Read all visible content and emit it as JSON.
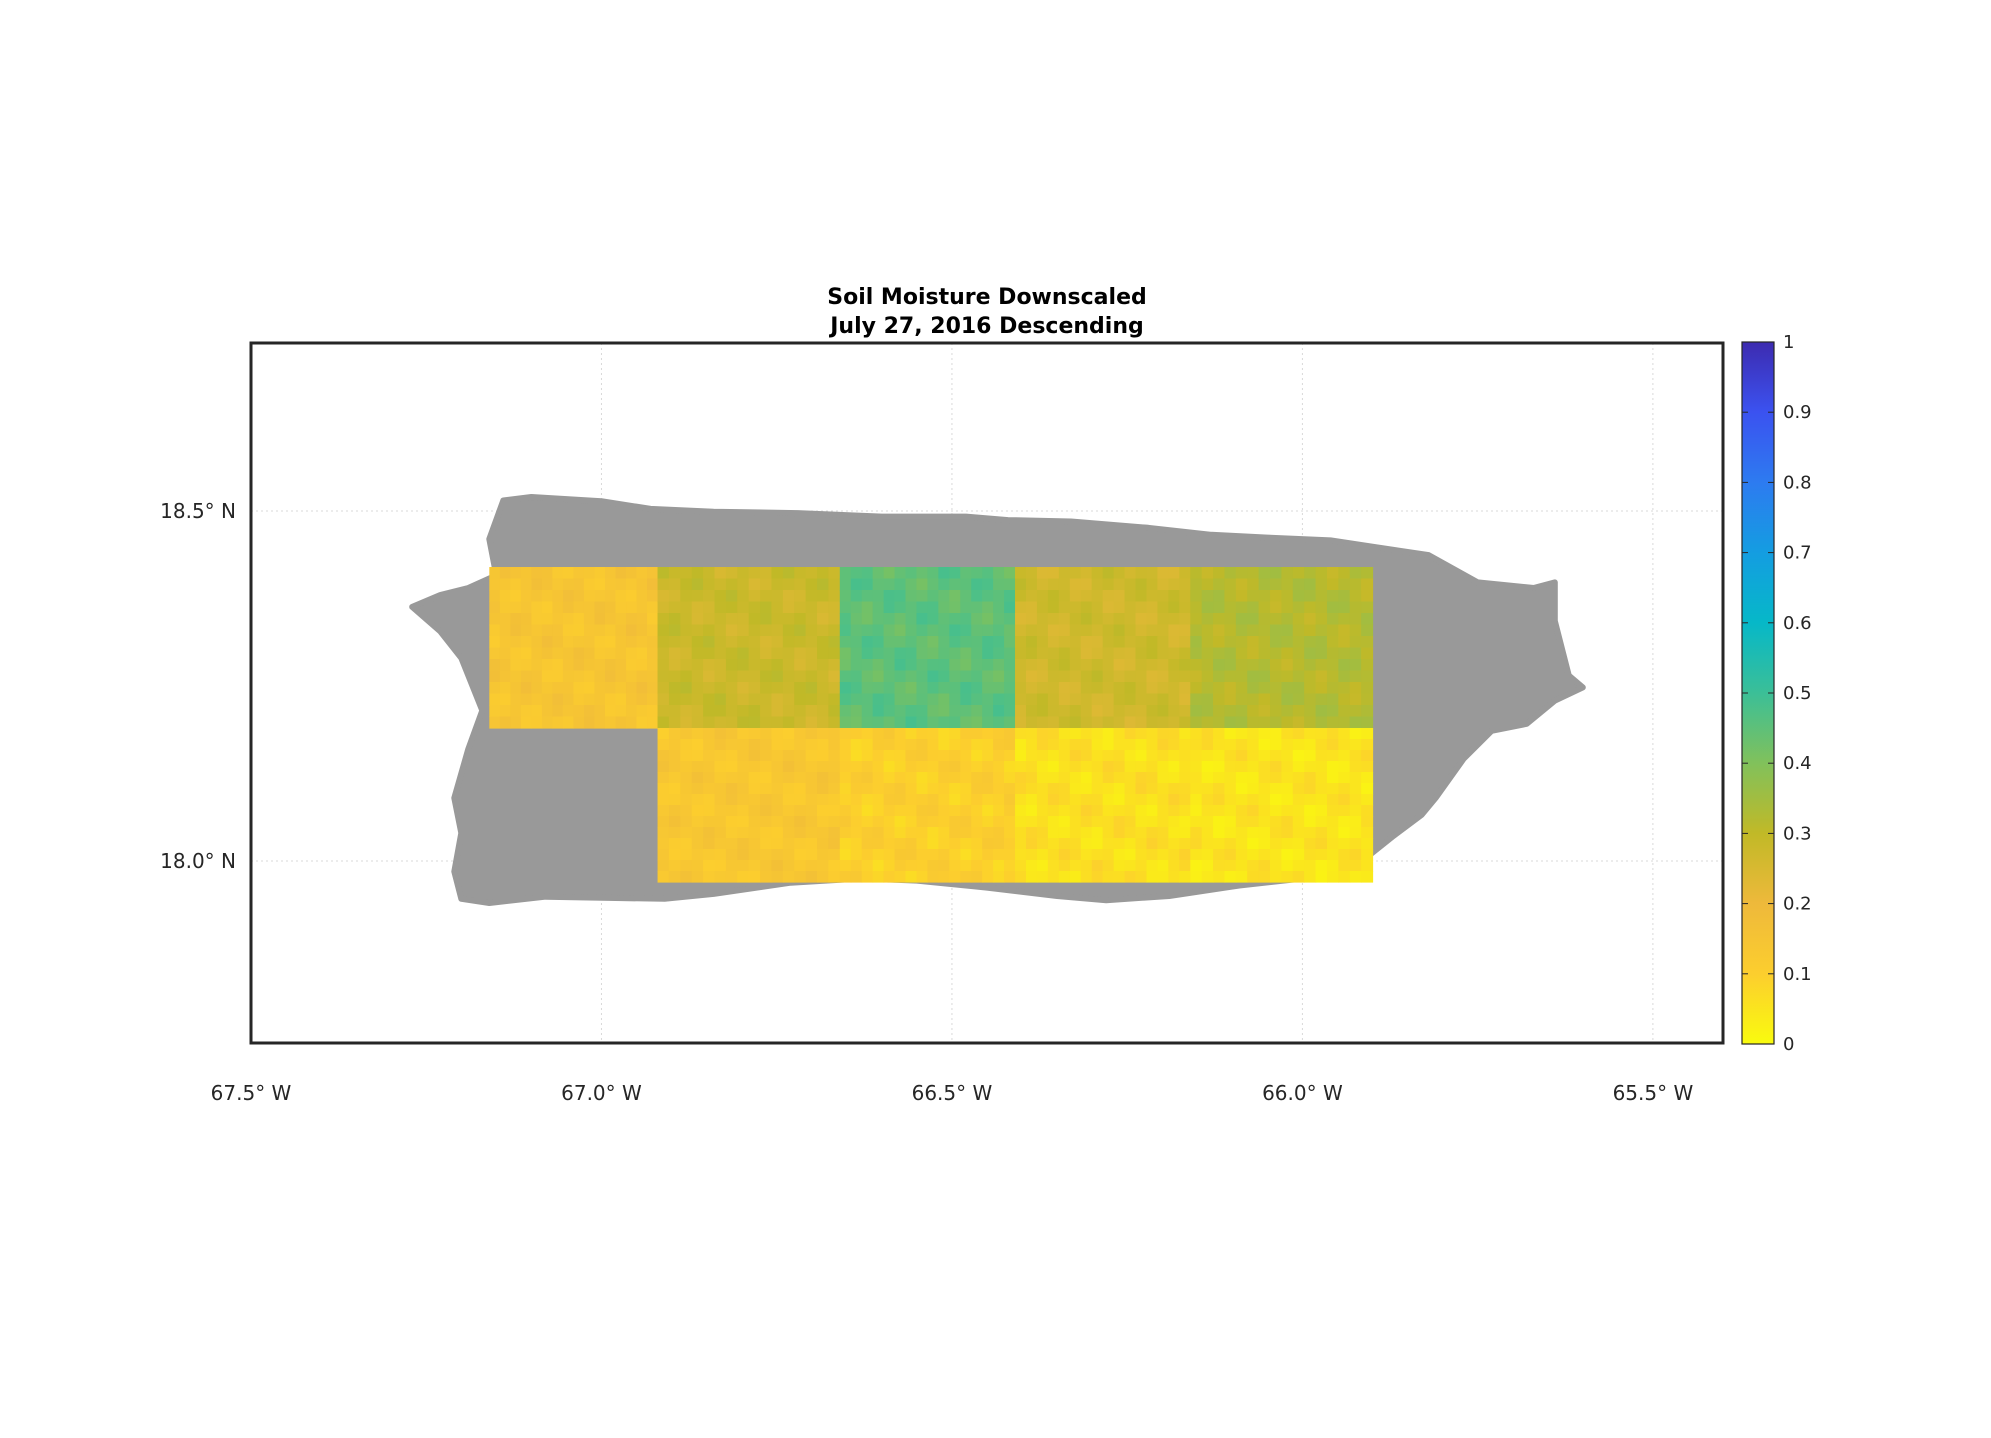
{
  "figure": {
    "title_line1": "Soil Moisture Downscaled",
    "title_line2": "July 27, 2016 Descending"
  },
  "map": {
    "lon_range": [
      -67.5,
      -65.4
    ],
    "lat_range": [
      17.74,
      18.74
    ],
    "lon_ticks": [
      {
        "value": -67.5,
        "label": "67.5° W"
      },
      {
        "value": -67.0,
        "label": "67.0° W"
      },
      {
        "value": -66.5,
        "label": "66.5° W"
      },
      {
        "value": -66.0,
        "label": "66.0° W"
      },
      {
        "value": -65.5,
        "label": "65.5° W"
      }
    ],
    "lat_ticks": [
      {
        "value": 18.5,
        "label": "18.5° N"
      },
      {
        "value": 18.0,
        "label": "18.0° N"
      }
    ],
    "grid": true,
    "land_color": "#999999",
    "frame_color": "#262626",
    "gridline_color": "#d9d9d9"
  },
  "colorbar": {
    "range": [
      0,
      1
    ],
    "ticks": [
      "0",
      "0.1",
      "0.2",
      "0.3",
      "0.4",
      "0.5",
      "0.6",
      "0.7",
      "0.8",
      "0.9",
      "1"
    ],
    "colormap": "parula",
    "colors": [
      "#f9fb0e",
      "#fcce2e",
      "#eeb93b",
      "#c1b927",
      "#81c15b",
      "#3bbf97",
      "#06b8c8",
      "#149de1",
      "#2d7bf0",
      "#3b52f0",
      "#3d2bb0"
    ]
  },
  "chart_data": {
    "type": "heatmap",
    "title": "Soil Moisture Downscaled\nJuly 27, 2016 Descending",
    "xlabel": "",
    "ylabel": "",
    "xlim": [
      -67.5,
      -65.4
    ],
    "ylim": [
      17.74,
      18.74
    ],
    "value_range": [
      0,
      1
    ],
    "note_values_estimated": true,
    "tiles": [
      {
        "lon": [
          -67.16,
          -66.92
        ],
        "lat": [
          18.19,
          18.42
        ],
        "mean": 0.14
      },
      {
        "lon": [
          -66.92,
          -66.66
        ],
        "lat": [
          18.19,
          18.42
        ],
        "mean": 0.28
      },
      {
        "lon": [
          -66.66,
          -66.41
        ],
        "lat": [
          18.19,
          18.42
        ],
        "mean": 0.45
      },
      {
        "lon": [
          -66.41,
          -66.16
        ],
        "lat": [
          18.19,
          18.42
        ],
        "mean": 0.27
      },
      {
        "lon": [
          -66.16,
          -65.9
        ],
        "lat": [
          18.19,
          18.42
        ],
        "mean": 0.32
      },
      {
        "lon": [
          -66.92,
          -66.66
        ],
        "lat": [
          17.97,
          18.19
        ],
        "mean": 0.13
      },
      {
        "lon": [
          -66.66,
          -66.41
        ],
        "lat": [
          17.97,
          18.19
        ],
        "mean": 0.1
      },
      {
        "lon": [
          -66.41,
          -66.16
        ],
        "lat": [
          17.97,
          18.19
        ],
        "mean": 0.06
      },
      {
        "lon": [
          -66.16,
          -65.9
        ],
        "lat": [
          17.97,
          18.19
        ],
        "mean": 0.05
      }
    ]
  }
}
